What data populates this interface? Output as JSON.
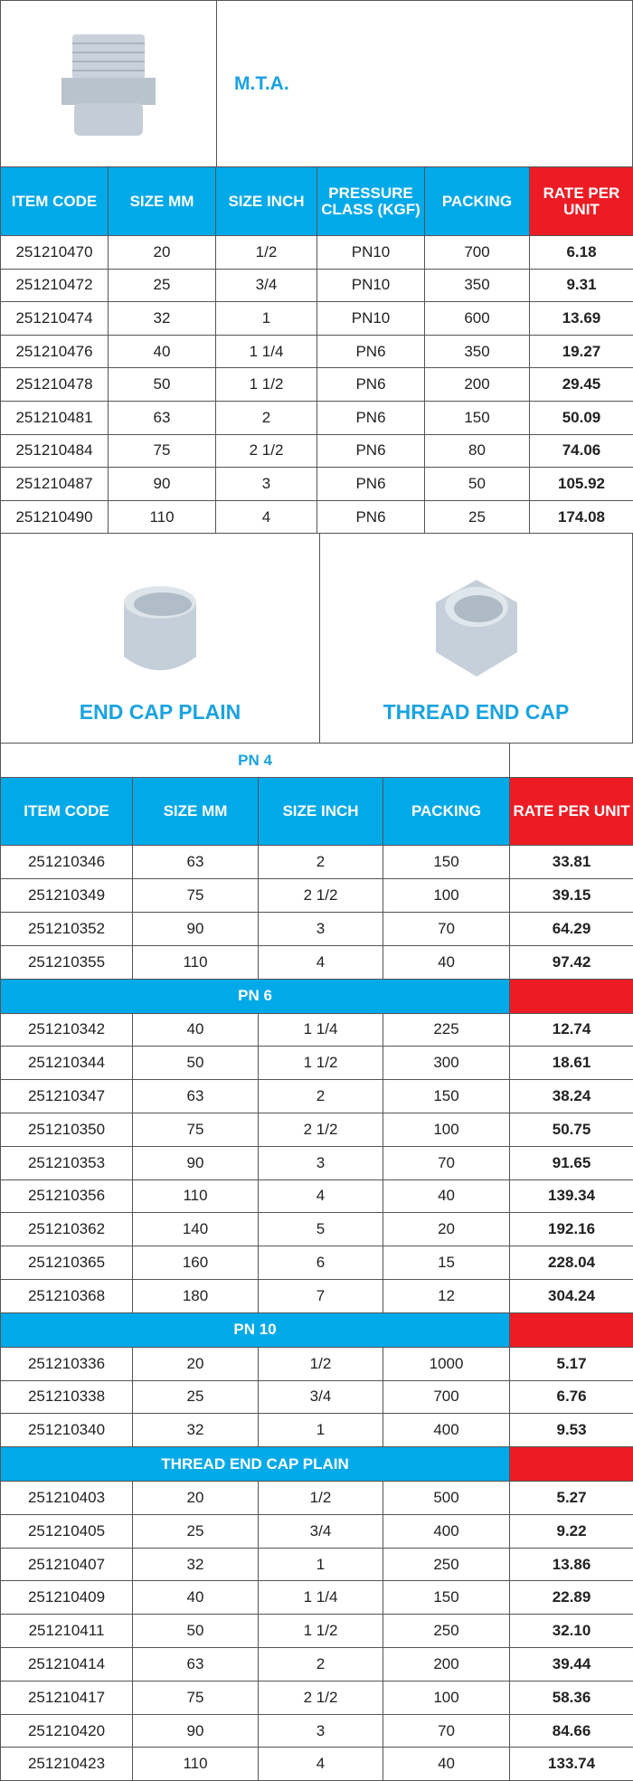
{
  "mta": {
    "title": "M.T.A.",
    "headers": [
      "ITEM CODE",
      "SIZE MM",
      "SIZE INCH",
      "PRESSURE CLASS (KGF)",
      "PACKING",
      "RATE PER UNIT"
    ],
    "rows": [
      [
        "251210470",
        "20",
        "1/2",
        "PN10",
        "700",
        "6.18"
      ],
      [
        "251210472",
        "25",
        "3/4",
        "PN10",
        "350",
        "9.31"
      ],
      [
        "251210474",
        "32",
        "1",
        "PN10",
        "600",
        "13.69"
      ],
      [
        "251210476",
        "40",
        "1 1/4",
        "PN6",
        "350",
        "19.27"
      ],
      [
        "251210478",
        "50",
        "1 1/2",
        "PN6",
        "200",
        "29.45"
      ],
      [
        "251210481",
        "63",
        "2",
        "PN6",
        "150",
        "50.09"
      ],
      [
        "251210484",
        "75",
        "2 1/2",
        "PN6",
        "80",
        "74.06"
      ],
      [
        "251210487",
        "90",
        "3",
        "PN6",
        "50",
        "105.92"
      ],
      [
        "251210490",
        "110",
        "4",
        "PN6",
        "25",
        "174.08"
      ]
    ]
  },
  "caps": {
    "left": "END CAP PLAIN",
    "right": "THREAD END CAP"
  },
  "table": {
    "headers": [
      "ITEM CODE",
      "SIZE MM",
      "SIZE INCH",
      "PACKING",
      "RATE PER UNIT"
    ],
    "sections": [
      {
        "title": "PN 4",
        "rows": [
          [
            "251210346",
            "63",
            "2",
            "150",
            "33.81"
          ],
          [
            "251210349",
            "75",
            "2 1/2",
            "100",
            "39.15"
          ],
          [
            "251210352",
            "90",
            "3",
            "70",
            "64.29"
          ],
          [
            "251210355",
            "110",
            "4",
            "40",
            "97.42"
          ]
        ]
      },
      {
        "title": "PN 6",
        "rows": [
          [
            "251210342",
            "40",
            "1 1/4",
            "225",
            "12.74"
          ],
          [
            "251210344",
            "50",
            "1 1/2",
            "300",
            "18.61"
          ],
          [
            "251210347",
            "63",
            "2",
            "150",
            "38.24"
          ],
          [
            "251210350",
            "75",
            "2 1/2",
            "100",
            "50.75"
          ],
          [
            "251210353",
            "90",
            "3",
            "70",
            "91.65"
          ],
          [
            "251210356",
            "110",
            "4",
            "40",
            "139.34"
          ],
          [
            "251210362",
            "140",
            "5",
            "20",
            "192.16"
          ],
          [
            "251210365",
            "160",
            "6",
            "15",
            "228.04"
          ],
          [
            "251210368",
            "180",
            "7",
            "12",
            "304.24"
          ]
        ]
      },
      {
        "title": "PN 10",
        "rows": [
          [
            "251210336",
            "20",
            "1/2",
            "1000",
            "5.17"
          ],
          [
            "251210338",
            "25",
            "3/4",
            "700",
            "6.76"
          ],
          [
            "251210340",
            "32",
            "1",
            "400",
            "9.53"
          ]
        ]
      },
      {
        "title": "THREAD END CAP PLAIN",
        "rows": [
          [
            "251210403",
            "20",
            "1/2",
            "500",
            "5.27"
          ],
          [
            "251210405",
            "25",
            "3/4",
            "400",
            "9.22"
          ],
          [
            "251210407",
            "32",
            "1",
            "250",
            "13.86"
          ],
          [
            "251210409",
            "40",
            "1 1/4",
            "150",
            "22.89"
          ],
          [
            "251210411",
            "50",
            "1 1/2",
            "250",
            "32.10"
          ],
          [
            "251210414",
            "63",
            "2",
            "200",
            "39.44"
          ],
          [
            "251210417",
            "75",
            "2 1/2",
            "100",
            "58.36"
          ],
          [
            "251210420",
            "90",
            "3",
            "70",
            "84.66"
          ],
          [
            "251210423",
            "110",
            "4",
            "40",
            "133.74"
          ]
        ]
      }
    ]
  }
}
